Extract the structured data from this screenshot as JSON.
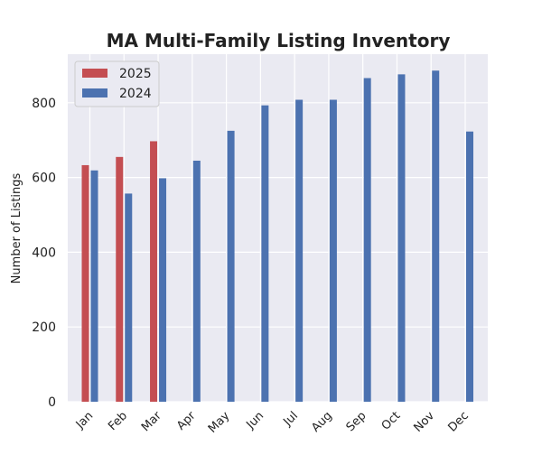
{
  "chart_data": {
    "type": "bar",
    "title": "MA Multi-Family Listing Inventory",
    "xlabel": "",
    "ylabel": "Number of Listings",
    "categories": [
      "Jan",
      "Feb",
      "Mar",
      "Apr",
      "May",
      "Jun",
      "Jul",
      "Aug",
      "Sep",
      "Oct",
      "Nov",
      "Dec"
    ],
    "series": [
      {
        "name": "2025",
        "color": "#c44e52",
        "values": [
          633,
          655,
          697,
          null,
          null,
          null,
          null,
          null,
          null,
          null,
          null,
          null
        ]
      },
      {
        "name": "2024",
        "color": "#4c72b0",
        "values": [
          619,
          557,
          598,
          645,
          725,
          793,
          808,
          808,
          866,
          876,
          886,
          723
        ]
      }
    ],
    "ylim": [
      0,
      930
    ],
    "yticks": [
      0,
      200,
      400,
      600,
      800
    ],
    "grid": true,
    "legend_position": "top-left",
    "plot_background": "#eaeaf2",
    "grid_color": "#ffffff"
  }
}
